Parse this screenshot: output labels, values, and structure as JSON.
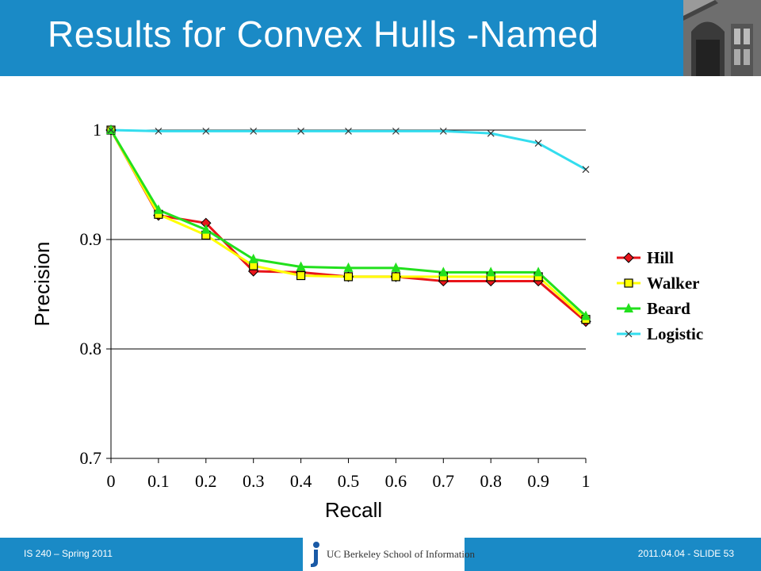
{
  "slide": {
    "title": "Results for Convex Hulls -Named",
    "footer_left": "IS 240 – Spring 2011",
    "footer_right": "2011.04.04 - SLIDE 53",
    "logo_text": "UC Berkeley School of Information"
  },
  "colors": {
    "header": "#1a8ac6",
    "Hill": "#e8151b",
    "Walker": "#ffff00",
    "Beard": "#22e01d",
    "Logistic": "#33ddee"
  },
  "chart_data": {
    "type": "line",
    "title": "",
    "xlabel": "Recall",
    "ylabel": "Precision",
    "x": [
      0,
      0.1,
      0.2,
      0.3,
      0.4,
      0.5,
      0.6,
      0.7,
      0.8,
      0.9,
      1
    ],
    "x_tick_labels": [
      "0",
      "0.1",
      "0.2",
      "0.3",
      "0.4",
      "0.5",
      "0.6",
      "0.7",
      "0.8",
      "0.9",
      "1"
    ],
    "y_ticks": [
      0.7,
      0.8,
      0.9,
      1
    ],
    "y_tick_labels": [
      "0.7",
      "0.8",
      "0.9",
      "1"
    ],
    "xlim": [
      0,
      1
    ],
    "ylim": [
      0.7,
      1
    ],
    "grid": "horizontal",
    "legend": "right",
    "series": [
      {
        "name": "Hill",
        "marker": "diamond",
        "values": [
          1.0,
          0.922,
          0.915,
          0.871,
          0.87,
          0.866,
          0.866,
          0.862,
          0.862,
          0.862,
          0.825
        ]
      },
      {
        "name": "Walker",
        "marker": "square",
        "values": [
          1.0,
          0.923,
          0.904,
          0.876,
          0.867,
          0.866,
          0.866,
          0.866,
          0.866,
          0.866,
          0.827
        ]
      },
      {
        "name": "Beard",
        "marker": "triangle",
        "values": [
          1.0,
          0.927,
          0.909,
          0.882,
          0.875,
          0.874,
          0.874,
          0.87,
          0.87,
          0.87,
          0.83
        ]
      },
      {
        "name": "Logistic",
        "marker": "x",
        "values": [
          1.0,
          0.999,
          0.999,
          0.999,
          0.999,
          0.999,
          0.999,
          0.999,
          0.997,
          0.988,
          0.964
        ]
      }
    ]
  }
}
